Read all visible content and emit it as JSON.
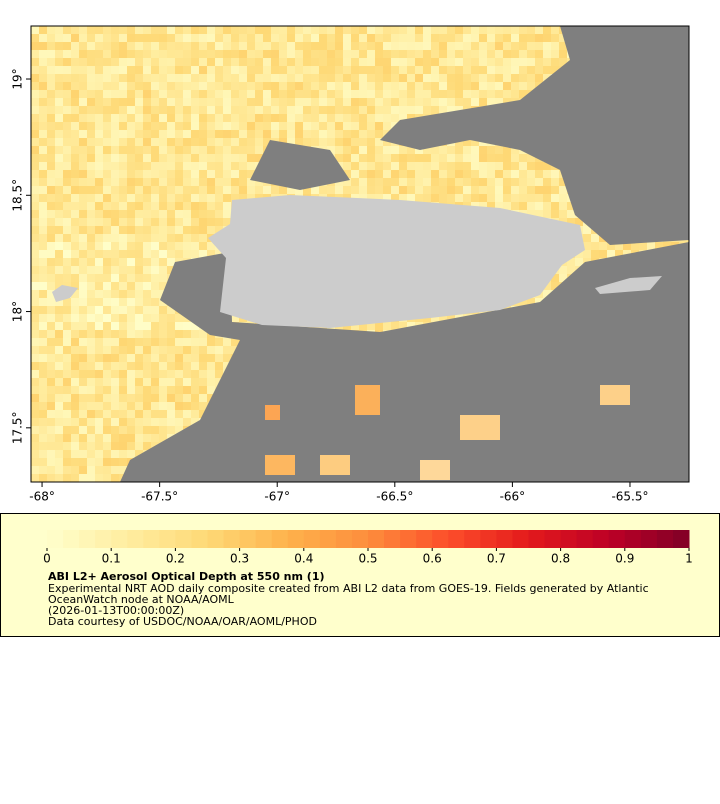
{
  "map": {
    "xlim": [
      -68.047,
      -65.249
    ],
    "ylim": [
      17.267,
      19.228
    ],
    "xticks": [
      {
        "value": -68,
        "label": "-68°"
      },
      {
        "value": -67.5,
        "label": "-67.5°"
      },
      {
        "value": -67,
        "label": "-67°"
      },
      {
        "value": -66.5,
        "label": "-66.5°"
      },
      {
        "value": -66,
        "label": "-66°"
      },
      {
        "value": -65.5,
        "label": "-65.5°"
      }
    ],
    "yticks": [
      {
        "value": 17.5,
        "label": "17.5°"
      },
      {
        "value": 18,
        "label": "18°"
      },
      {
        "value": 18.5,
        "label": "18.5°"
      },
      {
        "value": 19,
        "label": "19°"
      }
    ]
  },
  "colorbar": {
    "lim": [
      0,
      1
    ],
    "ticks": [
      0,
      0.1,
      0.2,
      0.3,
      0.4,
      0.5,
      0.6,
      0.7,
      0.8,
      0.9,
      1
    ],
    "colors": [
      "#ffffcc",
      "#ffeda0",
      "#fed976",
      "#feb24c",
      "#fd8d3c",
      "#fc4e2a",
      "#e31a1c",
      "#bd0026",
      "#800026"
    ]
  },
  "legend": {
    "title": "ABI L2+ Aerosol Optical Depth at 550 nm (1)",
    "lines": [
      "Experimental NRT AOD daily composite created from ABI L2 data from GOES-19. Fields generated by Atlantic",
      "OceanWatch node at NOAA/AOML",
      "(2026-01-13T00:00:00Z)",
      "Data courtesy of USDOC/NOAA/OAR/AOML/PHOD"
    ]
  }
}
